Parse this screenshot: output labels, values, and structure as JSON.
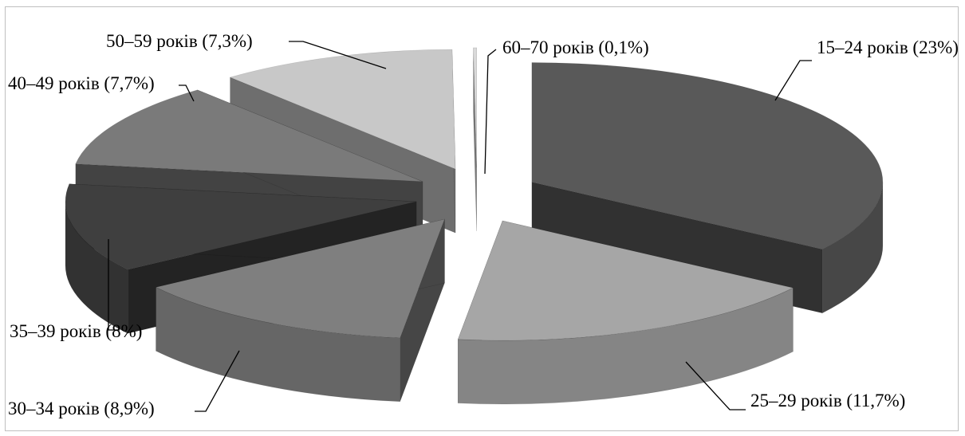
{
  "chart_data": {
    "type": "pie",
    "style": "3d-exploded",
    "slices": [
      {
        "label": "15–24 років (23%)",
        "category": "15–24 років",
        "value": 23,
        "color": "#595959"
      },
      {
        "label": "25–29 років (11,7%)",
        "category": "25–29 років",
        "value": 11.7,
        "color": "#a6a6a6"
      },
      {
        "label": "30–34 років (8,9%)",
        "category": "30–34 років",
        "value": 8.9,
        "color": "#7f7f7f"
      },
      {
        "label": "35–39 років (8%)",
        "category": "35–39 років",
        "value": 8,
        "color": "#3f3f3f"
      },
      {
        "label": "40–49 років (7,7%)",
        "category": "40–49 років",
        "value": 7.7,
        "color": "#7a7a7a"
      },
      {
        "label": "50–59 років (7,3%)",
        "category": "50–59 років",
        "value": 7.3,
        "color": "#c8c8c8"
      },
      {
        "label": "60–70 років (0,1%)",
        "category": "60–70 років",
        "value": 0.1,
        "color": "#d9d9d9"
      }
    ],
    "legend": "none"
  }
}
